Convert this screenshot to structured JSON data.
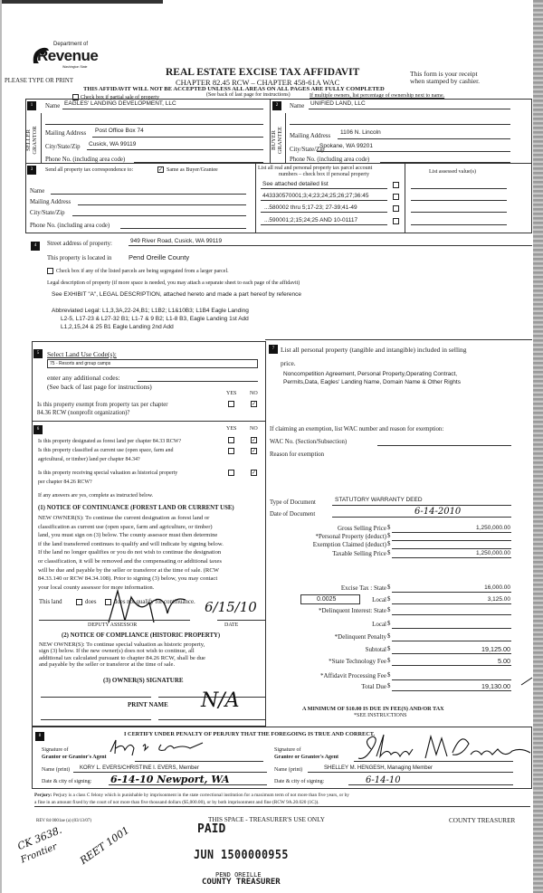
{
  "header": {
    "logo_dept": "Department of",
    "logo_name": "Revenue",
    "logo_state": "Washington State",
    "please_type": "PLEASE TYPE OR PRINT",
    "title": "REAL ESTATE EXCISE TAX AFFIDAVIT",
    "chapter": "CHAPTER 82.45 RCW – CHAPTER 458-61A WAC",
    "receipt_note_1": "This form is your receipt",
    "receipt_note_2": "when stamped by cashier.",
    "warning": "THIS AFFIDAVIT WILL NOT BE ACCEPTED UNLESS ALL AREAS ON ALL PAGES ARE FULLY COMPLETED",
    "instructions": "(See back of last page for instructions)",
    "partial_sale_label": "Check box if partial sale of property",
    "partial_sale_checked": false,
    "multiple_owners": "If multiple owners, list percentage of ownership next to name."
  },
  "seller": {
    "number": "1",
    "side_label": "SELLER GRANTOR",
    "name_label": "Name",
    "name": "EAGLES' LANDING DEVELOPMENT, LLC",
    "mailing_label": "Mailing Address",
    "mailing": "Post Office Box 74",
    "city_label": "City/State/Zip",
    "city": "Cusick, WA 99119",
    "phone_label": "Phone No. (including area code)"
  },
  "buyer": {
    "number": "2",
    "side_label": "BUYER GRANTEE",
    "name_label": "Name",
    "name": "UNIFIED LAND, LLC",
    "mailing_label": "Mailing Address",
    "mailing": "1106 N. Lincoln",
    "city_label": "City/State/Zip",
    "city": "Spokane, WA 99201",
    "phone_label": "Phone No. (including area code)"
  },
  "correspondence": {
    "number": "3",
    "send_label": "Send all property tax correspondence to:",
    "same_as_buyer_label": "Same as Buyer/Grantee",
    "same_as_buyer_checked": true,
    "name_label": "Name",
    "mailing_label": "Mailing Address",
    "city_label": "City/State/Zip",
    "phone_label": "Phone No. (including area code)",
    "parcels_header_1": "List all real and personal property tax parcel account",
    "parcels_header_2": "numbers – check box if personal property",
    "parcels": [
      {
        "value": "See attached detailed list",
        "personal": false
      },
      {
        "value": "443330570001;3;4;23;24;25;26;27;36:45",
        "personal": false
      },
      {
        "value": "...580002 thru 5;17-23; 27-39;41-49",
        "personal": false
      },
      {
        "value": "...590001;2;15;24;25 AND 10-01117",
        "personal": false
      }
    ],
    "assessed_header": "List assessed value(s)"
  },
  "property": {
    "number": "4",
    "street_label": "Street address of property:",
    "street": "949 River Road, Cusick, WA 99119",
    "located_label": "This property is located in",
    "county": "Pend Oreille County",
    "segregated_label": "Check box if any of the listed parcels are being segregated from a larger parcel.",
    "segregated_checked": false,
    "legal_label": "Legal description of property (if more space is needed, you may attach a separate sheet to each page of the affidavit)",
    "legal_exhibit": "See EXHIBIT \"A\", LEGAL DESCRIPTION, attached hereto and made a part hereof by reference",
    "abbrev_1": "Abbreviated Legal: L1,3,3A,22-24,B1; L1B2; L1&10B3; L1B4 Eagle Landing",
    "abbrev_2": "L2-5, L17-23 & L27-32 B1; L1-7 & 9 B2; L1-8 B3, Eagle Landing 1st Add",
    "abbrev_3": "L1,2,15,24 & 25 B1 Eagle Landing 2nd Add"
  },
  "land_use": {
    "number": "5",
    "select_label": "Select Land Use Code(s):",
    "code": "75 - Resorts and group camps",
    "additional_label": "enter any additional codes:",
    "see_back": "(See back of last page for instructions)",
    "yes": "YES",
    "no": "NO",
    "exempt_q_1": "Is this property exempt from property tax per chapter",
    "exempt_q_2": "84.36 RCW (nonprofit organization)?",
    "exempt_answer": "NO"
  },
  "designation": {
    "number": "6",
    "yes": "YES",
    "no": "NO",
    "q1": "Is this property designated as forest land per chapter 84.33 RCW?",
    "q2_1": "Is this property classified as current use (open space, farm and",
    "q2_2": "agricultural, or timber) land per chapter 84.34?",
    "q3_1": "Is this property receiving special valuation as historical property",
    "q3_2": "per chapter 84.26 RCW?",
    "answers": [
      "NO",
      "NO",
      "NO"
    ],
    "if_yes": "If any answers are yes, complete as instructed below.",
    "continuance_title": "(1) NOTICE OF CONTINUANCE  (FOREST LAND OR CURRENT USE)",
    "continuance_lines": [
      "NEW OWNER(S): To continue the current designation as forest land or",
      "classification as current use (open space, farm and agriculture, or timber)",
      "land, you must sign on (3) below. The county assessor must then determine",
      "if the land transferred continues to qualify and will indicate by signing below.",
      "If the land no longer qualifies or you do not wish to continue the designation",
      "or classification, it will be removed and the compensating or additional taxes",
      "will be due and payable by the seller or transferor at the time of sale. (RCW",
      "84.33.140 or RCW 84.34.108). Prior to signing (3) below, you may contact",
      "your local county assessor for more information."
    ],
    "this_land": "This land",
    "does": "does",
    "does_not": "does not qualify for continuance.",
    "deputy_assessor": "DEPUTY ASSESSOR",
    "date_label": "DATE",
    "assessor_date": "6/15/10",
    "compliance_title": "(2) NOTICE OF COMPLIANCE (HISTORIC PROPERTY)",
    "compliance_lines": [
      "NEW OWNER(S): To continue special valuation as historic property,",
      "sign (3) below. If the new owner(s) does not wish to continue, all",
      "additional tax calculated pursuant to chapter 84.26 RCW, shall be due",
      "and payable by the seller or transferor at the time of sale."
    ],
    "owner_signature": "(3)  OWNER(S) SIGNATURE",
    "print_name": "PRINT NAME",
    "owner_handwritten": "N/A"
  },
  "personal_property": {
    "number": "7",
    "label_1": "List all  personal property (tangible and intangible) included in selling",
    "label_2": "price.",
    "items_1": "Noncompetition Agreement, Personal Property,Operating Contract,",
    "items_2": "Permits,Data, Eagles' Landing Name, Domain Name & Other Rights"
  },
  "exemption": {
    "claim_label": "If claiming an exemption, list WAC number and reason for exemption:",
    "wac_label": "WAC No. (Section/Subsection)",
    "reason_label": "Reason for exemption"
  },
  "document": {
    "type_label": "Type of Document",
    "type": "STATUTORY WARRANTY DEED",
    "date_label": "Date of Document",
    "date": "6-14-2010"
  },
  "amounts": [
    {
      "label": "Gross Selling Price",
      "value": "1,250,000.00"
    },
    {
      "label": "*Personal Property (deduct)",
      "value": ""
    },
    {
      "label": "Exemption Claimed (deduct)",
      "value": ""
    },
    {
      "label": "Taxable Selling Price",
      "value": "1,250,000.00"
    },
    {
      "label": "Excise Tax : State",
      "value": "16,000.00"
    },
    {
      "label": "Local",
      "value": "3,125.00"
    },
    {
      "label": "*Delinquent Interest: State",
      "value": ""
    },
    {
      "label": "Local",
      "value": ""
    },
    {
      "label": "*Delinquent Penalty",
      "value": ""
    },
    {
      "label": "Subtotal",
      "value": "19,125.00"
    },
    {
      "label": "*State Technology Fee",
      "value": "5.00"
    },
    {
      "label": "*Affidavit Processing Fee",
      "value": ""
    },
    {
      "label": "Total Due",
      "value": "19,130.00"
    }
  ],
  "currency": "$",
  "local_rate": "0.0025",
  "minimum_note": "A MINIMUM OF $10.00 IS DUE IN FEE(S) AND/OR TAX",
  "see_instructions": "*SEE INSTRUCTIONS",
  "certification": {
    "number": "8",
    "statement": "I CERTIFY UNDER PENALTY OF PERJURY THAT THE FOREGOING IS TRUE AND CORRECT.",
    "grantor_sig_1": "Signature of",
    "grantor_sig_2": "Grantor or Grantor's Agent",
    "grantor_signature": "Kory L. Evers",
    "grantor_name_label": "Name (print)",
    "grantor_name": "KORY L. EVERS/CHRISTINE I. EVERS, Member",
    "grantor_date_label": "Date & city of signing:",
    "grantor_date": "6-14-10 Newport, WA",
    "grantee_sig_1": "Signature of",
    "grantee_sig_2": "Grantee or Grantee's Agent",
    "grantee_signature": "Shelley M. Hengesh",
    "grantee_name_label": "Name (print)",
    "grantee_name": "SHELLEY M. HENGESH, Managing Member",
    "grantee_date_label": "Date & city of signing:",
    "grantee_date": "6-14-10"
  },
  "perjury": {
    "label": "Perjury:",
    "line_1": "Perjury is a class C felony which is punishable by imprisonment in the state correctional institution for a maximum term of not more than five years, or by",
    "line_2": "a fine in an amount fixed by the court of not more than five thousand dollars ($5,000.00), or by both imprisonment and fine (RCW 9A.20.020 (1C))."
  },
  "footer": {
    "form_number": "REV 84 0001ae (a) (03/13/07)",
    "treasurer_use": "THIS SPACE - TREASURER'S USE ONLY",
    "county_treasurer": "COUNTY TREASURER",
    "stamp_paid": "PAID",
    "stamp_number": "JUN 1500000955",
    "stamp_county": "PEND OREILLE",
    "stamp_treasurer": "COUNTY TREASURER",
    "note_ck": "CK 3638.",
    "note_frontier": "Frontier",
    "note_reet": "REET 1001"
  }
}
